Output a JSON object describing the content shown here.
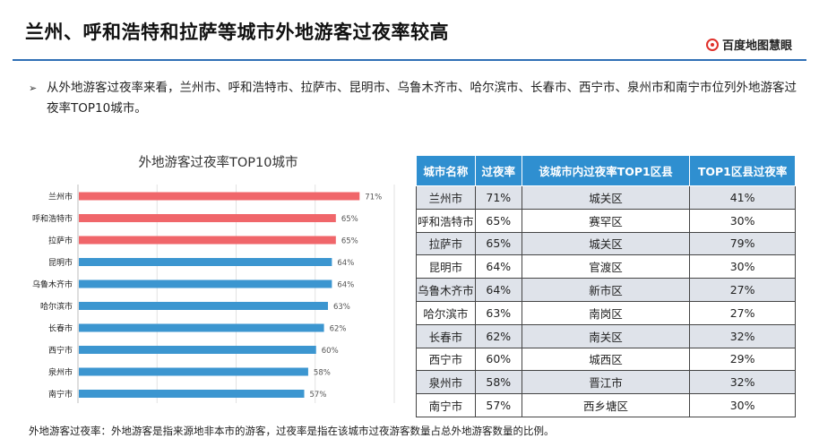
{
  "page": {
    "title": "兰州、呼和浩特和拉萨等城市外地游客过夜率较高",
    "brand": "百度地图慧眼",
    "bullet": "从外地游客过夜率来看，兰州市、呼和浩特市、拉萨市、昆明市、乌鲁木齐市、哈尔滨市、长春市、西宁市、泉州市和南宁市位列外地游客过夜率TOP10城市。",
    "footnote": "外地游客过夜率：外地游客是指来源地非本市的游客，过夜率是指在该城市过夜游客数量占总外地游客数量的比例。"
  },
  "colors": {
    "accent_blue": "#2f6fb5",
    "bar_red": "#f0666a",
    "bar_blue": "#3c96d0",
    "brand_red": "#e0312b",
    "header_blue": "#2f8fd0"
  },
  "chart_data": {
    "type": "bar",
    "orientation": "horizontal",
    "title": "外地游客过夜率TOP10城市",
    "categories": [
      "兰州市",
      "呼和浩特市",
      "拉萨市",
      "昆明市",
      "乌鲁木齐市",
      "哈尔滨市",
      "长春市",
      "西宁市",
      "泉州市",
      "南宁市"
    ],
    "values": [
      71,
      65,
      65,
      64,
      64,
      63,
      62,
      60,
      58,
      57
    ],
    "value_labels": [
      "71%",
      "65%",
      "65%",
      "64%",
      "64%",
      "63%",
      "62%",
      "60%",
      "58%",
      "57%"
    ],
    "highlight_count": 3,
    "xlim": [
      0,
      80
    ],
    "grid": true,
    "legend": "none"
  },
  "table": {
    "headers": [
      "城市名称",
      "过夜率",
      "该城市内过夜率TOP1区县",
      "TOP1区县过夜率"
    ],
    "rows": [
      [
        "兰州市",
        "71%",
        "城关区",
        "41%"
      ],
      [
        "呼和浩特市",
        "65%",
        "赛罕区",
        "30%"
      ],
      [
        "拉萨市",
        "65%",
        "城关区",
        "79%"
      ],
      [
        "昆明市",
        "64%",
        "官渡区",
        "30%"
      ],
      [
        "乌鲁木齐市",
        "64%",
        "新市区",
        "27%"
      ],
      [
        "哈尔滨市",
        "63%",
        "南岗区",
        "27%"
      ],
      [
        "长春市",
        "62%",
        "南关区",
        "32%"
      ],
      [
        "西宁市",
        "60%",
        "城西区",
        "29%"
      ],
      [
        "泉州市",
        "58%",
        "晋江市",
        "32%"
      ],
      [
        "南宁市",
        "57%",
        "西乡塘区",
        "30%"
      ]
    ]
  }
}
